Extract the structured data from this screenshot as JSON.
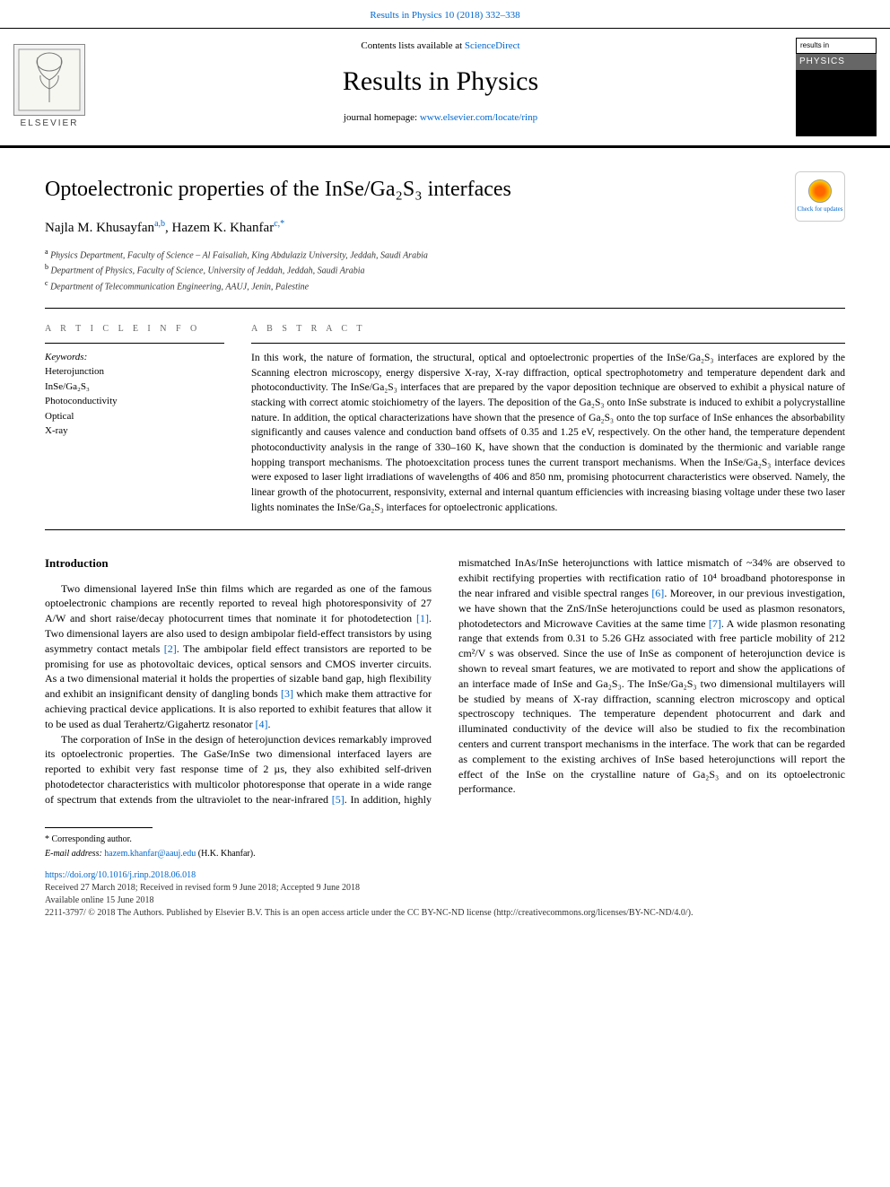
{
  "top_citation": "Results in Physics 10 (2018) 332–338",
  "masthead": {
    "contents_prefix": "Contents lists available at ",
    "contents_link": "ScienceDirect",
    "journal_title": "Results in Physics",
    "homepage_prefix": "journal homepage: ",
    "homepage_link": "www.elsevier.com/locate/rinp",
    "publisher_label": "ELSEVIER",
    "cover_top": "results in",
    "cover_brand": "PHYSICS"
  },
  "check_updates_label": "Check for updates",
  "article": {
    "title_html": "Optoelectronic properties of the InSe/Ga₂S₃ interfaces",
    "authors_html": "Najla M. Khusayfan<sup class='sup'>a,b</sup>, Hazem K. Khanfar<sup class='sup'>c,*</sup>",
    "affiliations": [
      {
        "sup": "a",
        "text": "Physics Department, Faculty of Science – Al Faisaliah, King Abdulaziz University, Jeddah, Saudi Arabia"
      },
      {
        "sup": "b",
        "text": "Department of Physics, Faculty of Science, University of Jeddah, Jeddah, Saudi Arabia"
      },
      {
        "sup": "c",
        "text": "Department of Telecommunication Engineering, AAUJ, Jenin, Palestine"
      }
    ]
  },
  "info": {
    "label": "A R T I C L E  I N F O",
    "keywords_label": "Keywords:",
    "keywords": [
      "Heterojunction",
      "InSe/Ga₂S₃",
      "Photoconductivity",
      "Optical",
      "X-ray"
    ]
  },
  "abstract": {
    "label": "A B S T R A C T",
    "text": "In this work, the nature of formation, the structural, optical and optoelectronic properties of the InSe/Ga₂S₃ interfaces are explored by the Scanning electron microscopy, energy dispersive X-ray, X-ray diffraction, optical spectrophotometry and temperature dependent dark and photoconductivity. The InSe/Ga₂S₃ interfaces that are prepared by the vapor deposition technique are observed to exhibit a physical nature of stacking with correct atomic stoichiometry of the layers. The deposition of the Ga₂S₃ onto InSe substrate is induced to exhibit a polycrystalline nature. In addition, the optical characterizations have shown that the presence of Ga₂S₃ onto the top surface of InSe enhances the absorbability significantly and causes valence and conduction band offsets of 0.35 and 1.25 eV, respectively. On the other hand, the temperature dependent photoconductivity analysis in the range of 330–160 K, have shown that the conduction is dominated by the thermionic and variable range hopping transport mechanisms. The photoexcitation process tunes the current transport mechanisms. When the InSe/Ga₂S₃ interface devices were exposed to laser light irradiations of wavelengths of 406 and 850 nm, promising photocurrent characteristics were observed. Namely, the linear growth of the photocurrent, responsivity, external and internal quantum efficiencies with increasing biasing voltage under these two laser lights nominates the InSe/Ga₂S₃ interfaces for optoelectronic applications."
  },
  "body": {
    "heading": "Introduction",
    "p1": "Two dimensional layered InSe thin films which are regarded as one of the famous optoelectronic champions are recently reported to reveal high photoresponsivity of 27 A/W and short raise/decay photocurrent times that nominate it for photodetection [1]. Two dimensional layers are also used to design ambipolar field-effect transistors by using asymmetry contact metals [2]. The ambipolar field effect transistors are reported to be promising for use as photovoltaic devices, optical sensors and CMOS inverter circuits. As a two dimensional material it holds the properties of sizable band gap, high flexibility and exhibit an insignificant density of dangling bonds [3] which make them attractive for achieving practical device applications. It is also reported to exhibit features that allow it to be used as dual Terahertz/Gigahertz resonator [4].",
    "p2": "The corporation of InSe in the design of heterojunction devices remarkably improved its optoelectronic properties. The GaSe/InSe two dimensional interfaced layers are reported to exhibit very fast response time of 2 µs, they also exhibited self-driven photodetector characteristics with multicolor photoresponse that operate in a wide range of spectrum that extends from the ultraviolet to the near-infrared [5]. In addition, highly mismatched InAs/InSe heterojunctions with lattice mismatch of ~34% are observed to exhibit rectifying properties with rectification ratio of 10⁴ broadband photoresponse in the near infrared and visible spectral ranges [6]. Moreover, in our previous investigation, we have shown that the ZnS/InSe heterojunctions could be used as plasmon resonators, photodetectors and Microwave Cavities at the same time [7]. A wide plasmon resonating range that extends from 0.31 to 5.26 GHz associated with free particle mobility of 212 cm²/V s was observed. Since the use of InSe as component of heterojunction device is shown to reveal smart features, we are motivated to report and show the applications of an interface made of InSe and Ga₂S₃. The InSe/Ga₂S₃ two dimensional multilayers will be studied by means of X-ray diffraction, scanning electron microscopy and optical spectroscopy techniques. The temperature dependent photocurrent and dark and illuminated conductivity of the device will also be studied to fix the recombination centers and current transport mechanisms in the interface. The work that can be regarded as complement to the existing archives of InSe based heterojunctions will report the effect of the InSe on the crystalline nature of Ga₂S₃ and on its optoelectronic performance."
  },
  "footer": {
    "corresponding": "* Corresponding author.",
    "email_label": "E-mail address: ",
    "email": "hazem.khanfar@aauj.edu",
    "email_suffix": " (H.K. Khanfar).",
    "doi": "https://doi.org/10.1016/j.rinp.2018.06.018",
    "received": "Received 27 March 2018; Received in revised form 9 June 2018; Accepted 9 June 2018",
    "online": "Available online 15 June 2018",
    "copyright": "2211-3797/ © 2018 The Authors. Published by Elsevier B.V. This is an open access article under the CC BY-NC-ND license (http://creativecommons.org/licenses/BY-NC-ND/4.0/)."
  },
  "colors": {
    "link": "#0066cc",
    "text": "#000000",
    "muted": "#666666"
  }
}
